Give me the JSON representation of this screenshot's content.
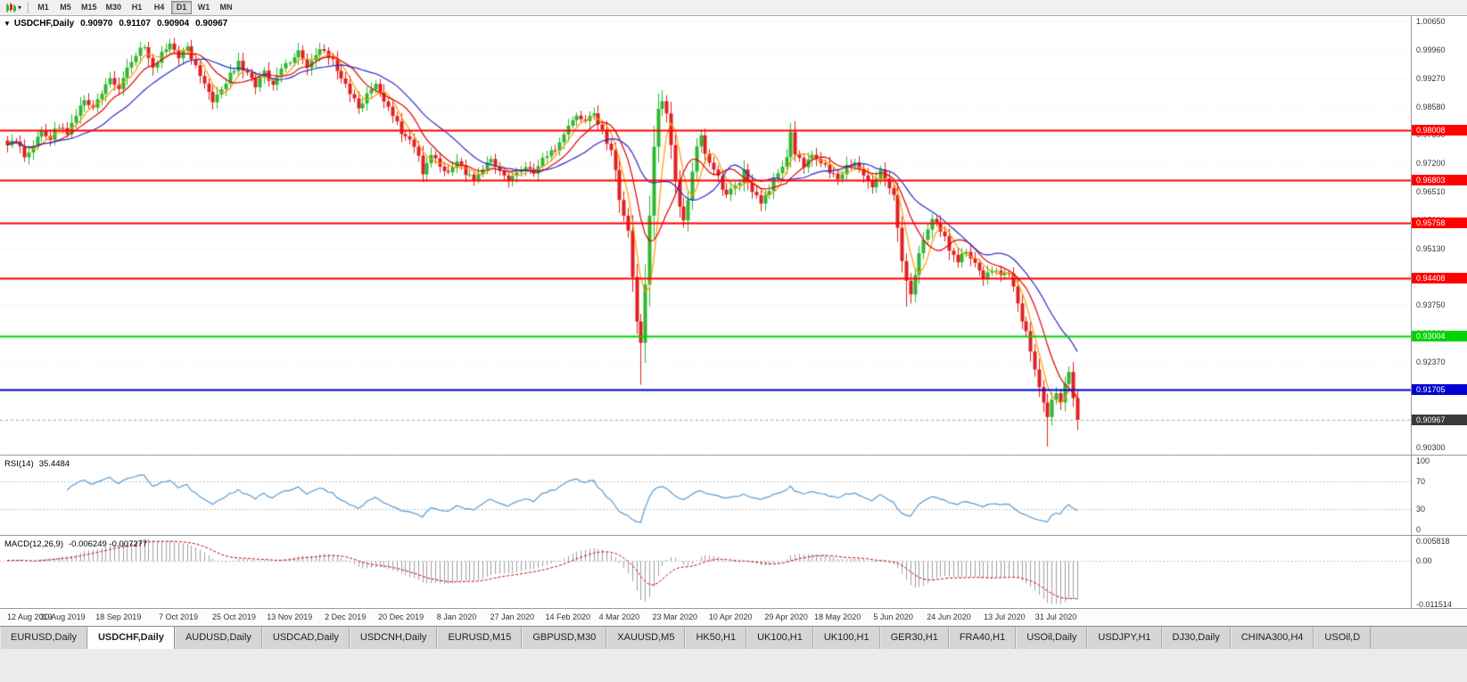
{
  "toolbar": {
    "timeframes": [
      "M1",
      "M5",
      "M15",
      "M30",
      "H1",
      "H4",
      "D1",
      "W1",
      "MN"
    ],
    "active_timeframe": "D1"
  },
  "chart": {
    "title": "USDCHF,Daily",
    "ohlc": {
      "open": "0.90970",
      "high": "0.91107",
      "low": "0.90904",
      "close": "0.90967"
    }
  },
  "rsi": {
    "label": "RSI(14)",
    "value": "35.4484",
    "scale": [
      100,
      70,
      30,
      0
    ]
  },
  "macd": {
    "label": "MACD(12,26,9)",
    "values": "-0.006249 -0.007277",
    "axis": [
      {
        "label": "0.005818",
        "value": 0.005818
      },
      {
        "label": "0.00",
        "value": 0.0
      },
      {
        "label": "-0.011514",
        "value": -0.011514
      }
    ]
  },
  "price_axis": {
    "labels": [
      "1.00650",
      "0.99960",
      "0.99270",
      "0.98580",
      "0.97890",
      "0.97200",
      "0.96510",
      "0.95820",
      "0.95130",
      "0.94440",
      "0.93750",
      "0.93060",
      "0.92370",
      "0.91680",
      "0.90990",
      "0.90300"
    ]
  },
  "current_price": "0.90967",
  "tabs": {
    "active_index": 1,
    "items": [
      "EURUSD,Daily",
      "USDCHF,Daily",
      "AUDUSD,Daily",
      "USDCAD,Daily",
      "USDCNH,Daily",
      "EURUSD,M15",
      "GBPUSD,M30",
      "XAUUSD,M5",
      "HK50,H1",
      "UK100,H1",
      "UK100,H1",
      "GER30,H1",
      "FRA40,H1",
      "USOil,Daily",
      "USDJPY,H1",
      "DJ30,Daily",
      "CHINA300,H4",
      "USOil,D"
    ]
  },
  "chart_data": {
    "type": "candlestick",
    "symbol": "USDCHF",
    "timeframe": "Daily",
    "bars": 251,
    "ylim": [
      0.9012,
      1.0078
    ],
    "ohlc_last": [
      0.9097,
      0.91107,
      0.90904,
      0.90967
    ],
    "price_path": [
      [
        0,
        0.9758
      ],
      [
        2,
        0.9778
      ],
      [
        4,
        0.9738
      ],
      [
        6,
        0.9768
      ],
      [
        8,
        0.9798
      ],
      [
        10,
        0.9782
      ],
      [
        12,
        0.9812
      ],
      [
        14,
        0.9792
      ],
      [
        16,
        0.9838
      ],
      [
        18,
        0.9868
      ],
      [
        20,
        0.9852
      ],
      [
        22,
        0.9888
      ],
      [
        24,
        0.9928
      ],
      [
        26,
        0.9908
      ],
      [
        28,
        0.9958
      ],
      [
        30,
        0.9988
      ],
      [
        32,
        1.0002
      ],
      [
        34,
        0.9952
      ],
      [
        36,
        0.9988
      ],
      [
        38,
        1.0008
      ],
      [
        40,
        0.9982
      ],
      [
        42,
        1.0
      ],
      [
        44,
        0.9958
      ],
      [
        46,
        0.9918
      ],
      [
        48,
        0.9872
      ],
      [
        50,
        0.9898
      ],
      [
        52,
        0.9938
      ],
      [
        54,
        0.9962
      ],
      [
        56,
        0.9938
      ],
      [
        58,
        0.9908
      ],
      [
        60,
        0.9938
      ],
      [
        62,
        0.9918
      ],
      [
        64,
        0.9948
      ],
      [
        66,
        0.9968
      ],
      [
        68,
        0.9988
      ],
      [
        70,
        0.9958
      ],
      [
        72,
        0.9982
      ],
      [
        74,
        0.9998
      ],
      [
        76,
        0.9968
      ],
      [
        78,
        0.9928
      ],
      [
        80,
        0.9888
      ],
      [
        82,
        0.9858
      ],
      [
        84,
        0.9882
      ],
      [
        86,
        0.9908
      ],
      [
        88,
        0.9878
      ],
      [
        90,
        0.9838
      ],
      [
        92,
        0.9798
      ],
      [
        94,
        0.9778
      ],
      [
        96,
        0.9738
      ],
      [
        97,
        0.97
      ],
      [
        99,
        0.9742
      ],
      [
        101,
        0.9718
      ],
      [
        103,
        0.9698
      ],
      [
        105,
        0.9718
      ],
      [
        107,
        0.9698
      ],
      [
        109,
        0.9678
      ],
      [
        111,
        0.9708
      ],
      [
        113,
        0.9728
      ],
      [
        115,
        0.9698
      ],
      [
        117,
        0.9678
      ],
      [
        119,
        0.9698
      ],
      [
        121,
        0.9718
      ],
      [
        123,
        0.9698
      ],
      [
        125,
        0.9728
      ],
      [
        127,
        0.9748
      ],
      [
        129,
        0.9768
      ],
      [
        131,
        0.9818
      ],
      [
        133,
        0.9838
      ],
      [
        135,
        0.9818
      ],
      [
        137,
        0.9842
      ],
      [
        139,
        0.9798
      ],
      [
        141,
        0.9748
      ],
      [
        142,
        0.9698
      ],
      [
        143,
        0.9632
      ],
      [
        144,
        0.9588
      ],
      [
        145,
        0.9558
      ],
      [
        146,
        0.9438
      ],
      [
        147,
        0.9328
      ],
      [
        148,
        0.9282
      ],
      [
        149,
        0.9422
      ],
      [
        150,
        0.9598
      ],
      [
        151,
        0.9768
      ],
      [
        152,
        0.9852
      ],
      [
        153,
        0.9878
      ],
      [
        154,
        0.9848
      ],
      [
        155,
        0.9758
      ],
      [
        156,
        0.9682
      ],
      [
        157,
        0.9622
      ],
      [
        158,
        0.9582
      ],
      [
        159,
        0.9638
      ],
      [
        160,
        0.9698
      ],
      [
        161,
        0.9758
      ],
      [
        162,
        0.9788
      ],
      [
        163,
        0.9748
      ],
      [
        164,
        0.9718
      ],
      [
        166,
        0.9682
      ],
      [
        168,
        0.9642
      ],
      [
        170,
        0.9662
      ],
      [
        172,
        0.9698
      ],
      [
        174,
        0.9658
      ],
      [
        176,
        0.9618
      ],
      [
        178,
        0.9658
      ],
      [
        180,
        0.9698
      ],
      [
        182,
        0.9738
      ],
      [
        183,
        0.9788
      ],
      [
        184,
        0.9748
      ],
      [
        186,
        0.9718
      ],
      [
        188,
        0.9742
      ],
      [
        190,
        0.9722
      ],
      [
        192,
        0.9698
      ],
      [
        194,
        0.9678
      ],
      [
        196,
        0.9712
      ],
      [
        198,
        0.9728
      ],
      [
        200,
        0.9698
      ],
      [
        202,
        0.9668
      ],
      [
        204,
        0.9698
      ],
      [
        206,
        0.9662
      ],
      [
        207,
        0.9638
      ],
      [
        208,
        0.9558
      ],
      [
        209,
        0.9482
      ],
      [
        210,
        0.9428
      ],
      [
        211,
        0.9398
      ],
      [
        212,
        0.9452
      ],
      [
        213,
        0.9502
      ],
      [
        214,
        0.9542
      ],
      [
        216,
        0.9582
      ],
      [
        218,
        0.9558
      ],
      [
        220,
        0.9512
      ],
      [
        222,
        0.9482
      ],
      [
        224,
        0.9512
      ],
      [
        226,
        0.9472
      ],
      [
        228,
        0.9432
      ],
      [
        230,
        0.9462
      ],
      [
        232,
        0.9442
      ],
      [
        234,
        0.9452
      ],
      [
        235,
        0.9422
      ],
      [
        236,
        0.9382
      ],
      [
        237,
        0.9342
      ],
      [
        238,
        0.9308
      ],
      [
        239,
        0.9268
      ],
      [
        240,
        0.9218
      ],
      [
        241,
        0.9178
      ],
      [
        242,
        0.9138
      ],
      [
        243,
        0.9102
      ],
      [
        244,
        0.9138
      ],
      [
        245,
        0.9168
      ],
      [
        246,
        0.9132
      ],
      [
        247,
        0.9182
      ],
      [
        248,
        0.9218
      ],
      [
        249,
        0.9148
      ],
      [
        250,
        0.90967
      ]
    ],
    "wick_overrides": [
      {
        "bar": 148,
        "low": 0.9182
      },
      {
        "bar": 153,
        "high": 0.9898
      },
      {
        "bar": 210,
        "low": 0.9372
      },
      {
        "bar": 243,
        "low": 0.9032
      }
    ],
    "levels": [
      {
        "price": "0.98008",
        "color": "#ff0000"
      },
      {
        "price": "0.96803",
        "color": "#ff0000"
      },
      {
        "price": "0.95758",
        "color": "#ff0000"
      },
      {
        "price": "0.94408",
        "color": "#ff0000"
      },
      {
        "price": "0.93004",
        "color": "#00d300"
      },
      {
        "price": "0.91705",
        "color": "#0000d0"
      }
    ],
    "current_price_line": {
      "price": "0.90967",
      "line_color": "#aaaaaa",
      "badge_color": "#3a3a3a"
    },
    "moving_averages": [
      {
        "period": 5,
        "color": "#ff9900"
      },
      {
        "period": 10,
        "color": "#dd0000"
      },
      {
        "period": 20,
        "color": "#2929cc"
      }
    ],
    "colors": {
      "bull": "#2eb82e",
      "bear": "#e02020",
      "grid": "#ececec",
      "histogram": "#a0a0a0",
      "rsi_line": "#569cd6",
      "macd_signal": "#d00000"
    },
    "x_ticks": [
      {
        "label": "12 Aug 2019",
        "bar": 0
      },
      {
        "label": "30 Aug 2019",
        "bar": 13
      },
      {
        "label": "18 Sep 2019",
        "bar": 26
      },
      {
        "label": "7 Oct 2019",
        "bar": 40
      },
      {
        "label": "25 Oct 2019",
        "bar": 53
      },
      {
        "label": "13 Nov 2019",
        "bar": 66
      },
      {
        "label": "2 Dec 2019",
        "bar": 79
      },
      {
        "label": "20 Dec 2019",
        "bar": 92
      },
      {
        "label": "8 Jan 2020",
        "bar": 105
      },
      {
        "label": "27 Jan 2020",
        "bar": 118
      },
      {
        "label": "14 Feb 2020",
        "bar": 131
      },
      {
        "label": "4 Mar 2020",
        "bar": 143
      },
      {
        "label": "23 Mar 2020",
        "bar": 156
      },
      {
        "label": "10 Apr 2020",
        "bar": 169
      },
      {
        "label": "29 Apr 2020",
        "bar": 182
      },
      {
        "label": "18 May 2020",
        "bar": 194
      },
      {
        "label": "5 Jun 2020",
        "bar": 207
      },
      {
        "label": "24 Jun 2020",
        "bar": 220
      },
      {
        "label": "13 Jul 2020",
        "bar": 233
      },
      {
        "label": "31 Jul 2020",
        "bar": 245
      }
    ],
    "indicators": {
      "rsi": {
        "period": 14,
        "current": 35.4484,
        "levels": [
          70,
          30
        ]
      },
      "macd": {
        "fast": 12,
        "slow": 26,
        "signal": 9,
        "current": -0.006249,
        "signal_current": -0.007277,
        "axis_range": [
          -0.0125,
          0.0065
        ]
      }
    }
  }
}
